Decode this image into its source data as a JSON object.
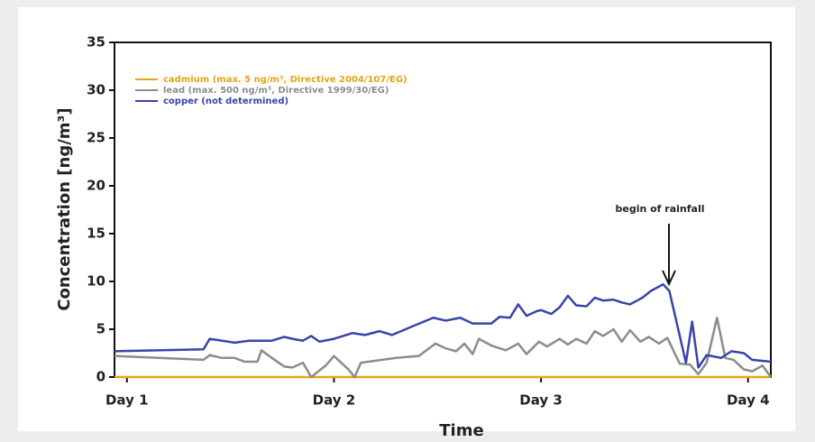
{
  "chart_data": {
    "type": "line",
    "xlabel": "Time",
    "ylabel": "Concentration [ng/m³]",
    "annotation": "begin of rainfall",
    "xlim": [
      0.94,
      4.11
    ],
    "xticks": [
      {
        "value": 1,
        "label": "Day 1"
      },
      {
        "value": 2,
        "label": "Day 2"
      },
      {
        "value": 3,
        "label": "Day 3"
      },
      {
        "value": 4,
        "label": "Day 4"
      }
    ],
    "ylim": [
      0,
      35
    ],
    "yticks": [
      0,
      5,
      10,
      15,
      20,
      25,
      30,
      35
    ],
    "series": [
      {
        "name": "cadmium (max. 5 ng/m³, Directive 2004/107/EG)",
        "color": "#e8a317",
        "x": [
          0.94,
          4.11
        ],
        "values": [
          0,
          0
        ]
      },
      {
        "name": "lead (max. 500 ng/m³, Directive 1999/30/EG)",
        "color": "#8c8c8c",
        "x": [
          0.94,
          1.37,
          1.4,
          1.46,
          1.52,
          1.57,
          1.63,
          1.65,
          1.7,
          1.76,
          1.8,
          1.85,
          1.89,
          1.96,
          2.0,
          2.04,
          2.07,
          2.1,
          2.13,
          2.3,
          2.41,
          2.49,
          2.54,
          2.59,
          2.63,
          2.67,
          2.7,
          2.76,
          2.83,
          2.89,
          2.93,
          2.99,
          3.03,
          3.09,
          3.13,
          3.17,
          3.22,
          3.26,
          3.3,
          3.35,
          3.39,
          3.43,
          3.48,
          3.52,
          3.57,
          3.61,
          3.67,
          3.72,
          3.76,
          3.8,
          3.85,
          3.89,
          3.93,
          3.98,
          4.02,
          4.07,
          4.11
        ],
        "values": [
          2.2,
          1.8,
          2.3,
          2.0,
          2.0,
          1.6,
          1.6,
          2.8,
          2.0,
          1.1,
          1.0,
          1.5,
          0,
          1.2,
          2.2,
          1.4,
          0.8,
          0,
          1.5,
          2.0,
          2.2,
          3.5,
          3.0,
          2.7,
          3.5,
          2.4,
          4.0,
          3.3,
          2.8,
          3.5,
          2.4,
          3.7,
          3.2,
          4.0,
          3.4,
          4.0,
          3.5,
          4.8,
          4.3,
          5.0,
          3.7,
          4.9,
          3.7,
          4.2,
          3.5,
          4.1,
          1.4,
          1.3,
          0.3,
          1.5,
          6.2,
          2.0,
          1.8,
          0.8,
          0.6,
          1.2,
          0
        ]
      },
      {
        "name": "copper (not determined)",
        "color": "#3a44a8",
        "x": [
          0.94,
          1.37,
          1.4,
          1.46,
          1.52,
          1.59,
          1.7,
          1.76,
          1.8,
          1.85,
          1.89,
          1.93,
          2.0,
          2.09,
          2.15,
          2.22,
          2.28,
          2.39,
          2.48,
          2.54,
          2.61,
          2.67,
          2.76,
          2.8,
          2.85,
          2.89,
          2.93,
          2.98,
          3.0,
          3.05,
          3.09,
          3.13,
          3.17,
          3.22,
          3.26,
          3.3,
          3.35,
          3.39,
          3.43,
          3.49,
          3.53,
          3.59,
          3.62,
          3.7,
          3.73,
          3.76,
          3.8,
          3.87,
          3.92,
          3.98,
          4.02,
          4.11
        ],
        "values": [
          2.7,
          2.9,
          4.0,
          3.8,
          3.6,
          3.8,
          3.8,
          4.2,
          4.0,
          3.8,
          4.3,
          3.7,
          4.0,
          4.6,
          4.4,
          4.8,
          4.4,
          5.4,
          6.2,
          5.9,
          6.2,
          5.6,
          5.6,
          6.3,
          6.2,
          7.6,
          6.4,
          6.9,
          7.0,
          6.6,
          7.3,
          8.5,
          7.5,
          7.4,
          8.3,
          8.0,
          8.1,
          7.8,
          7.6,
          8.3,
          9.0,
          9.7,
          9.0,
          1.5,
          5.8,
          1.0,
          2.3,
          2.0,
          2.7,
          2.5,
          1.8,
          1.6
        ]
      }
    ]
  }
}
